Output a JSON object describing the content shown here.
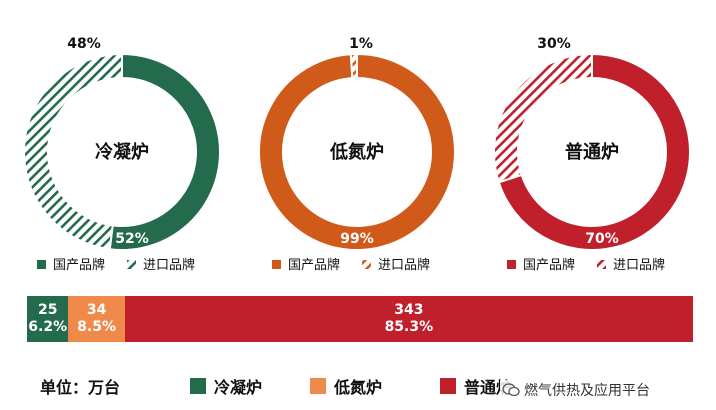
{
  "colors": {
    "condensing": "#246b4d",
    "low_nitrogen": "#cf5a1a",
    "low_nitrogen_bar": "#f08a4b",
    "ordinary": "#c0202b"
  },
  "chart_data": [
    {
      "type": "pie",
      "center_label": "冷凝炉",
      "slices": [
        {
          "label": "国产品牌",
          "value": 52,
          "display": "52%",
          "color": "#246b4d",
          "pattern": "solid"
        },
        {
          "label": "进口品牌",
          "value": 48,
          "display": "48%",
          "color": "#246b4d",
          "pattern": "hatched"
        }
      ],
      "legend": [
        "国产品牌",
        "进口品牌"
      ]
    },
    {
      "type": "pie",
      "center_label": "低氮炉",
      "slices": [
        {
          "label": "国产品牌",
          "value": 99,
          "display": "99%",
          "color": "#cf5a1a",
          "pattern": "solid"
        },
        {
          "label": "进口品牌",
          "value": 1,
          "display": "1%",
          "color": "#cf5a1a",
          "pattern": "hatched"
        }
      ],
      "legend": [
        "国产品牌",
        "进口品牌"
      ]
    },
    {
      "type": "pie",
      "center_label": "普通炉",
      "slices": [
        {
          "label": "国产品牌",
          "value": 70,
          "display": "70%",
          "color": "#c0202b",
          "pattern": "solid"
        },
        {
          "label": "进口品牌",
          "value": 30,
          "display": "30%",
          "color": "#c0202b",
          "pattern": "hatched"
        }
      ],
      "legend": [
        "国产品牌",
        "进口品牌"
      ]
    },
    {
      "type": "bar",
      "orientation": "horizontal-stacked",
      "unit_label": "单位：万台",
      "series": [
        {
          "name": "冷凝炉",
          "value": 25,
          "share": "6.2%",
          "color": "#246b4d"
        },
        {
          "name": "低氮炉",
          "value": 34,
          "share": "8.5%",
          "color": "#f08a4b"
        },
        {
          "name": "普通炉",
          "value": 343,
          "share": "85.3%",
          "color": "#c0202b"
        }
      ]
    }
  ],
  "watermark": "燃气供热及应用平台"
}
